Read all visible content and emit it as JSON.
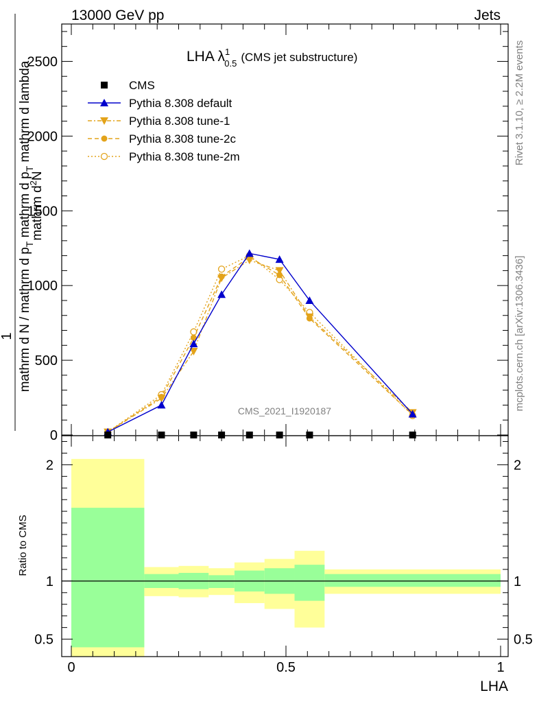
{
  "header": {
    "left": "13000 GeV pp",
    "right": "Jets"
  },
  "side_labels": {
    "rivet": "Rivet 3.1.10, ≥ 2.2M events",
    "mcplots": "mcplots.cern.ch [arXiv:1306.3436]"
  },
  "plot_title": {
    "main": "LHA λ",
    "sup": "1",
    "sub": "0.5",
    "suffix": "(CMS jet substructure)"
  },
  "watermark": "CMS_2021_I1920187",
  "colors": {
    "default": "#0000cc",
    "tunes": "#e3a31a",
    "band_inner": "#99ff99",
    "band_outer": "#ffff99"
  },
  "chart_data": [
    {
      "type": "line",
      "title": "LHA λ^1_0.5 (CMS jet substructure)",
      "ylabel": "1 / mathrm d N / mathrm d p_T mathrm d^2N / mathrm d p_T mathrm d lambda",
      "xlim": [
        0,
        1
      ],
      "ylim": [
        0,
        2750
      ],
      "yticks": [
        0,
        500,
        1000,
        1500,
        2000,
        2500
      ],
      "ytick_labels": [
        "0",
        "500",
        "1000",
        "1500",
        "2000",
        "2500"
      ],
      "legend_position": "top-left",
      "series": [
        {
          "name": "CMS",
          "marker": "square",
          "x": [
            0.085,
            0.21,
            0.285,
            0.35,
            0.415,
            0.485,
            0.555,
            0.795
          ],
          "y": [
            0,
            0,
            0,
            0,
            0,
            0,
            0,
            0
          ]
        },
        {
          "name": "Pythia 8.308 default",
          "marker": "triangle-up",
          "dash": "solid",
          "x": [
            0.085,
            0.21,
            0.285,
            0.35,
            0.415,
            0.485,
            0.555,
            0.795
          ],
          "y": [
            20,
            200,
            610,
            940,
            1215,
            1175,
            900,
            140
          ]
        },
        {
          "name": "Pythia 8.308 tune-1",
          "marker": "triangle-down",
          "dash": "dashdot",
          "x": [
            0.085,
            0.21,
            0.285,
            0.35,
            0.415,
            0.485,
            0.555,
            0.795
          ],
          "y": [
            20,
            245,
            560,
            1050,
            1170,
            1100,
            790,
            150
          ]
        },
        {
          "name": "Pythia 8.308 tune-2c",
          "marker": "circle",
          "dash": "dashed",
          "x": [
            0.085,
            0.21,
            0.285,
            0.35,
            0.415,
            0.485,
            0.555,
            0.795
          ],
          "y": [
            20,
            255,
            650,
            1060,
            1190,
            1070,
            780,
            135
          ]
        },
        {
          "name": "Pythia 8.308 tune-2m",
          "marker": "open-circle",
          "dash": "dotted",
          "x": [
            0.085,
            0.21,
            0.285,
            0.35,
            0.415,
            0.485,
            0.555,
            0.795
          ],
          "y": [
            20,
            270,
            690,
            1110,
            1200,
            1040,
            820,
            130
          ]
        }
      ]
    },
    {
      "type": "area",
      "ylabel": "Ratio to CMS",
      "xlabel": "LHA",
      "xlim": [
        0,
        1
      ],
      "ylim": [
        0.35,
        2.25
      ],
      "xticks": [
        0,
        0.5,
        1
      ],
      "xtick_labels": [
        "0",
        "0.5",
        "1"
      ],
      "yticks": [
        0.5,
        1,
        2
      ],
      "ytick_labels": [
        "0.5",
        "1",
        "2"
      ],
      "reference_line": 1,
      "bins": [
        {
          "x": [
            0.0,
            0.17
          ],
          "inner": [
            0.43,
            1.63
          ],
          "outer": [
            0.35,
            2.05
          ]
        },
        {
          "x": [
            0.17,
            0.25
          ],
          "inner": [
            0.94,
            1.06
          ],
          "outer": [
            0.87,
            1.12
          ]
        },
        {
          "x": [
            0.25,
            0.32
          ],
          "inner": [
            0.93,
            1.07
          ],
          "outer": [
            0.86,
            1.13
          ]
        },
        {
          "x": [
            0.32,
            0.38
          ],
          "inner": [
            0.94,
            1.05
          ],
          "outer": [
            0.88,
            1.11
          ]
        },
        {
          "x": [
            0.38,
            0.45
          ],
          "inner": [
            0.91,
            1.09
          ],
          "outer": [
            0.81,
            1.16
          ]
        },
        {
          "x": [
            0.45,
            0.52
          ],
          "inner": [
            0.89,
            1.11
          ],
          "outer": [
            0.76,
            1.19
          ]
        },
        {
          "x": [
            0.52,
            0.59
          ],
          "inner": [
            0.83,
            1.14
          ],
          "outer": [
            0.6,
            1.26
          ]
        },
        {
          "x": [
            0.59,
            1.0
          ],
          "inner": [
            0.95,
            1.06
          ],
          "outer": [
            0.89,
            1.1
          ]
        }
      ]
    }
  ]
}
